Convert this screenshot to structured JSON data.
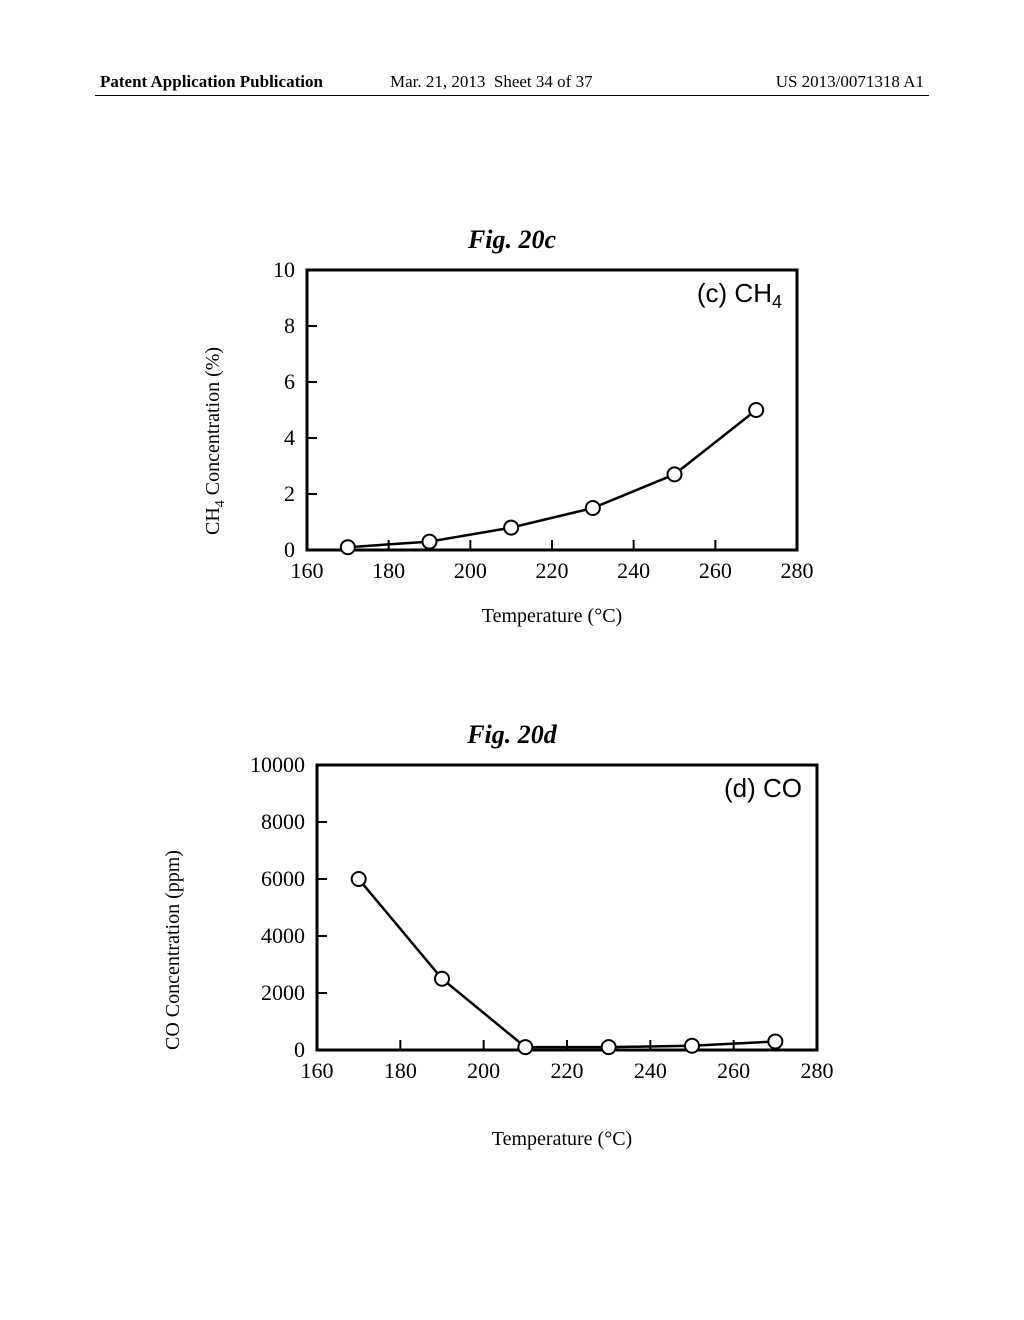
{
  "header": {
    "left": "Patent Application Publication",
    "mid_date": "Mar. 21, 2013",
    "mid_sheet": "Sheet 34 of 37",
    "right": "US 2013/0071318 A1"
  },
  "chart_c": {
    "type": "line",
    "title": "Fig. 20c",
    "panel_label_prefix": "(c) CH",
    "panel_label_sub": "4",
    "ylabel_prefix": "CH",
    "ylabel_sub": "4",
    "ylabel_suffix": " Concentration (%)",
    "xlabel": "Temperature (°C)",
    "xlim": [
      160,
      280
    ],
    "ylim": [
      0,
      10
    ],
    "xticks": [
      160,
      180,
      200,
      220,
      240,
      260,
      280
    ],
    "yticks": [
      0,
      2,
      4,
      6,
      8,
      10
    ],
    "points": [
      {
        "x": 170,
        "y": 0.1
      },
      {
        "x": 190,
        "y": 0.3
      },
      {
        "x": 210,
        "y": 0.8
      },
      {
        "x": 230,
        "y": 1.5
      },
      {
        "x": 250,
        "y": 2.7
      },
      {
        "x": 270,
        "y": 5.0
      }
    ],
    "marker": {
      "shape": "circle",
      "r": 7,
      "fill": "#ffffff",
      "stroke": "#000000",
      "stroke_width": 2
    },
    "line": {
      "color": "#000000",
      "width": 2.5
    },
    "axis": {
      "color": "#000000",
      "width": 3
    },
    "background": "#ffffff"
  },
  "chart_d": {
    "type": "line",
    "title": "Fig. 20d",
    "panel_label": "(d) CO",
    "ylabel": "CO Concentration (ppm)",
    "xlabel": "Temperature (°C)",
    "xlim": [
      160,
      280
    ],
    "ylim": [
      0,
      10000
    ],
    "xticks": [
      160,
      180,
      200,
      220,
      240,
      260,
      280
    ],
    "yticks": [
      0,
      2000,
      4000,
      6000,
      8000,
      10000
    ],
    "points": [
      {
        "x": 170,
        "y": 6000
      },
      {
        "x": 190,
        "y": 2500
      },
      {
        "x": 210,
        "y": 100
      },
      {
        "x": 230,
        "y": 100
      },
      {
        "x": 250,
        "y": 150
      },
      {
        "x": 270,
        "y": 300
      }
    ],
    "marker": {
      "shape": "circle",
      "r": 7,
      "fill": "#ffffff",
      "stroke": "#000000",
      "stroke_width": 2
    },
    "line": {
      "color": "#000000",
      "width": 2.5
    },
    "axis": {
      "color": "#000000",
      "width": 3
    },
    "background": "#ffffff"
  }
}
